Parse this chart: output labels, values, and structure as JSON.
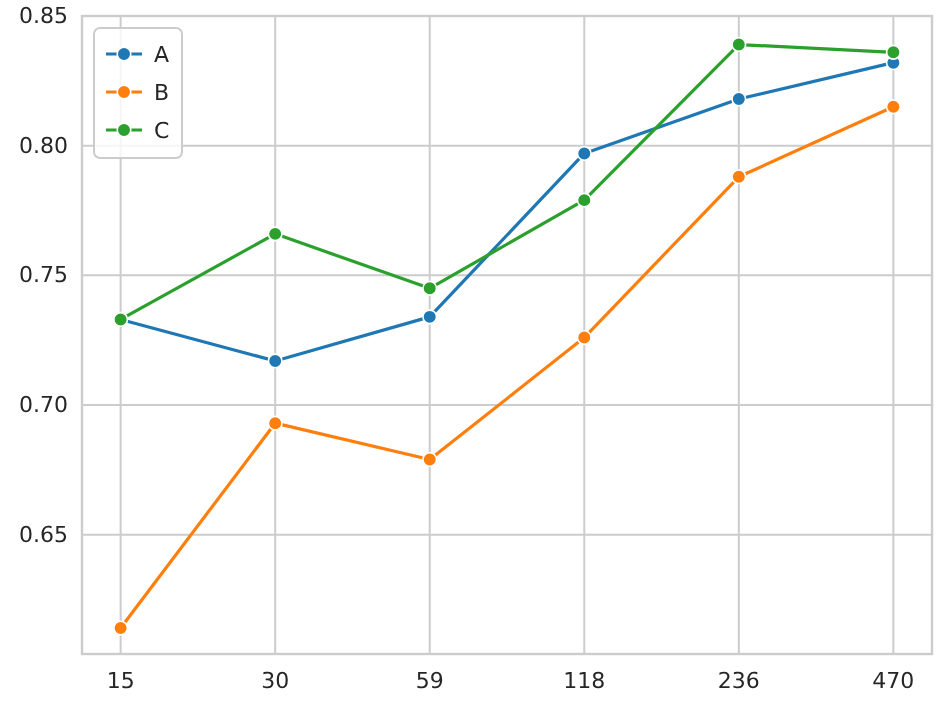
{
  "chart_data": {
    "type": "line",
    "categories": [
      "15",
      "30",
      "59",
      "118",
      "236",
      "470"
    ],
    "series": [
      {
        "name": "A",
        "color": "#1f77b4",
        "values": [
          0.733,
          0.717,
          0.734,
          0.797,
          0.818,
          0.832
        ]
      },
      {
        "name": "B",
        "color": "#ff7f0e",
        "values": [
          0.614,
          0.693,
          0.679,
          0.726,
          0.788,
          0.815
        ]
      },
      {
        "name": "C",
        "color": "#2ca02c",
        "values": [
          0.733,
          0.766,
          0.745,
          0.779,
          0.839,
          0.836
        ]
      }
    ],
    "ylim": [
      0.604,
      0.85
    ],
    "yticks": [
      0.65,
      {
        "value": 0.7,
        "label": "0.70"
      },
      0.75,
      {
        "value": 0.8,
        "label": "0.80"
      },
      0.85
    ],
    "grid": true,
    "legend": "top left",
    "marker": "circle",
    "line_style": "solid"
  }
}
